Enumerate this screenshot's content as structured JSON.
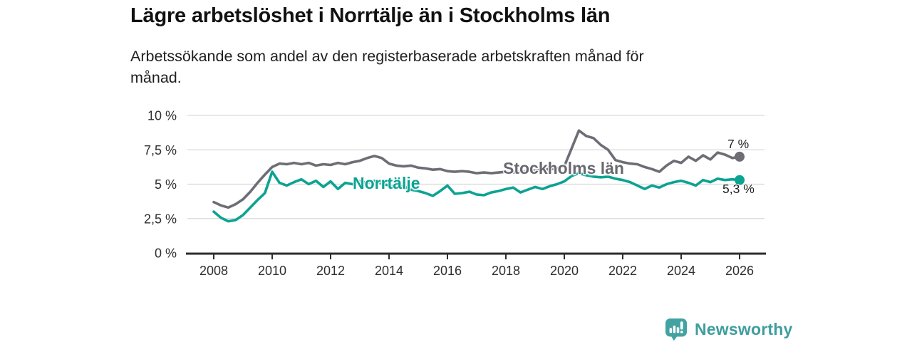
{
  "header": {
    "title": "Lägre arbetslöshet i Norrtälje än i Stockholms län",
    "subtitle": "Arbetssökande som andel av den registerbaserade arbetskraften månad för månad."
  },
  "chart_data": {
    "type": "line",
    "title": "Lägre arbetslöshet i Norrtälje än i Stockholms län",
    "subtitle": "Arbetssökande som andel av den registerbaserade arbetskraften månad för månad.",
    "unit": "%",
    "grid": true,
    "legend_position": "inline-labels",
    "ylim": [
      0,
      10
    ],
    "xlim": [
      2007.5,
      2026.9
    ],
    "x_start": 2008,
    "x_step": 0.25,
    "x_ticks": [
      2008,
      2010,
      2012,
      2014,
      2016,
      2018,
      2020,
      2022,
      2024,
      2026
    ],
    "y_ticks": [
      {
        "v": 0,
        "label": "0 %"
      },
      {
        "v": 2.5,
        "label": "2,5 %"
      },
      {
        "v": 5,
        "label": "5 %"
      },
      {
        "v": 7.5,
        "label": "7,5 %"
      },
      {
        "v": 10,
        "label": "10 %"
      }
    ],
    "series": [
      {
        "id": "stockholm",
        "name": "Stockholms län",
        "color": "#6d6d75",
        "end_label": "7 %",
        "end_value": 7.0,
        "values": [
          3.7,
          3.45,
          3.3,
          3.55,
          3.9,
          4.45,
          5.1,
          5.7,
          6.25,
          6.5,
          6.45,
          6.55,
          6.45,
          6.55,
          6.35,
          6.45,
          6.4,
          6.55,
          6.45,
          6.6,
          6.7,
          6.9,
          7.05,
          6.9,
          6.5,
          6.35,
          6.3,
          6.35,
          6.2,
          6.15,
          6.05,
          6.1,
          5.95,
          5.9,
          5.95,
          5.9,
          5.8,
          5.85,
          5.8,
          5.85,
          5.9,
          5.85,
          5.9,
          5.95,
          6.0,
          6.05,
          6.1,
          6.15,
          6.3,
          7.6,
          8.9,
          8.5,
          8.35,
          7.85,
          7.5,
          6.75,
          6.6,
          6.5,
          6.45,
          6.25,
          6.1,
          5.9,
          6.35,
          6.7,
          6.55,
          7.0,
          6.7,
          7.1,
          6.8,
          7.3,
          7.15,
          6.9,
          7.0
        ]
      },
      {
        "id": "norrtalje",
        "name": "Norrtälje",
        "color": "#0ba392",
        "end_label": "5,3 %",
        "end_value": 5.3,
        "values": [
          3.0,
          2.55,
          2.3,
          2.4,
          2.75,
          3.3,
          3.85,
          4.35,
          5.9,
          5.1,
          4.9,
          5.15,
          5.35,
          5.0,
          5.25,
          4.8,
          5.2,
          4.65,
          5.1,
          5.0,
          5.2,
          5.1,
          5.25,
          5.05,
          4.9,
          4.75,
          4.85,
          4.6,
          4.5,
          4.35,
          4.15,
          4.5,
          4.9,
          4.3,
          4.35,
          4.45,
          4.25,
          4.2,
          4.4,
          4.5,
          4.65,
          4.75,
          4.4,
          4.6,
          4.8,
          4.65,
          4.85,
          5.0,
          5.2,
          5.6,
          5.8,
          5.65,
          5.55,
          5.5,
          5.55,
          5.4,
          5.3,
          5.15,
          4.9,
          4.65,
          4.9,
          4.75,
          5.0,
          5.15,
          5.25,
          5.1,
          4.9,
          5.3,
          5.15,
          5.4,
          5.3,
          5.35,
          5.3
        ]
      }
    ]
  },
  "colors": {
    "accent_teal": "#0ba392",
    "line_gray": "#6d6d75",
    "brand_teal": "#3f9d9d",
    "axis": "#2d2d2d",
    "grid": "#d9d9d9"
  },
  "footer": {
    "brand": "Newsworthy"
  }
}
